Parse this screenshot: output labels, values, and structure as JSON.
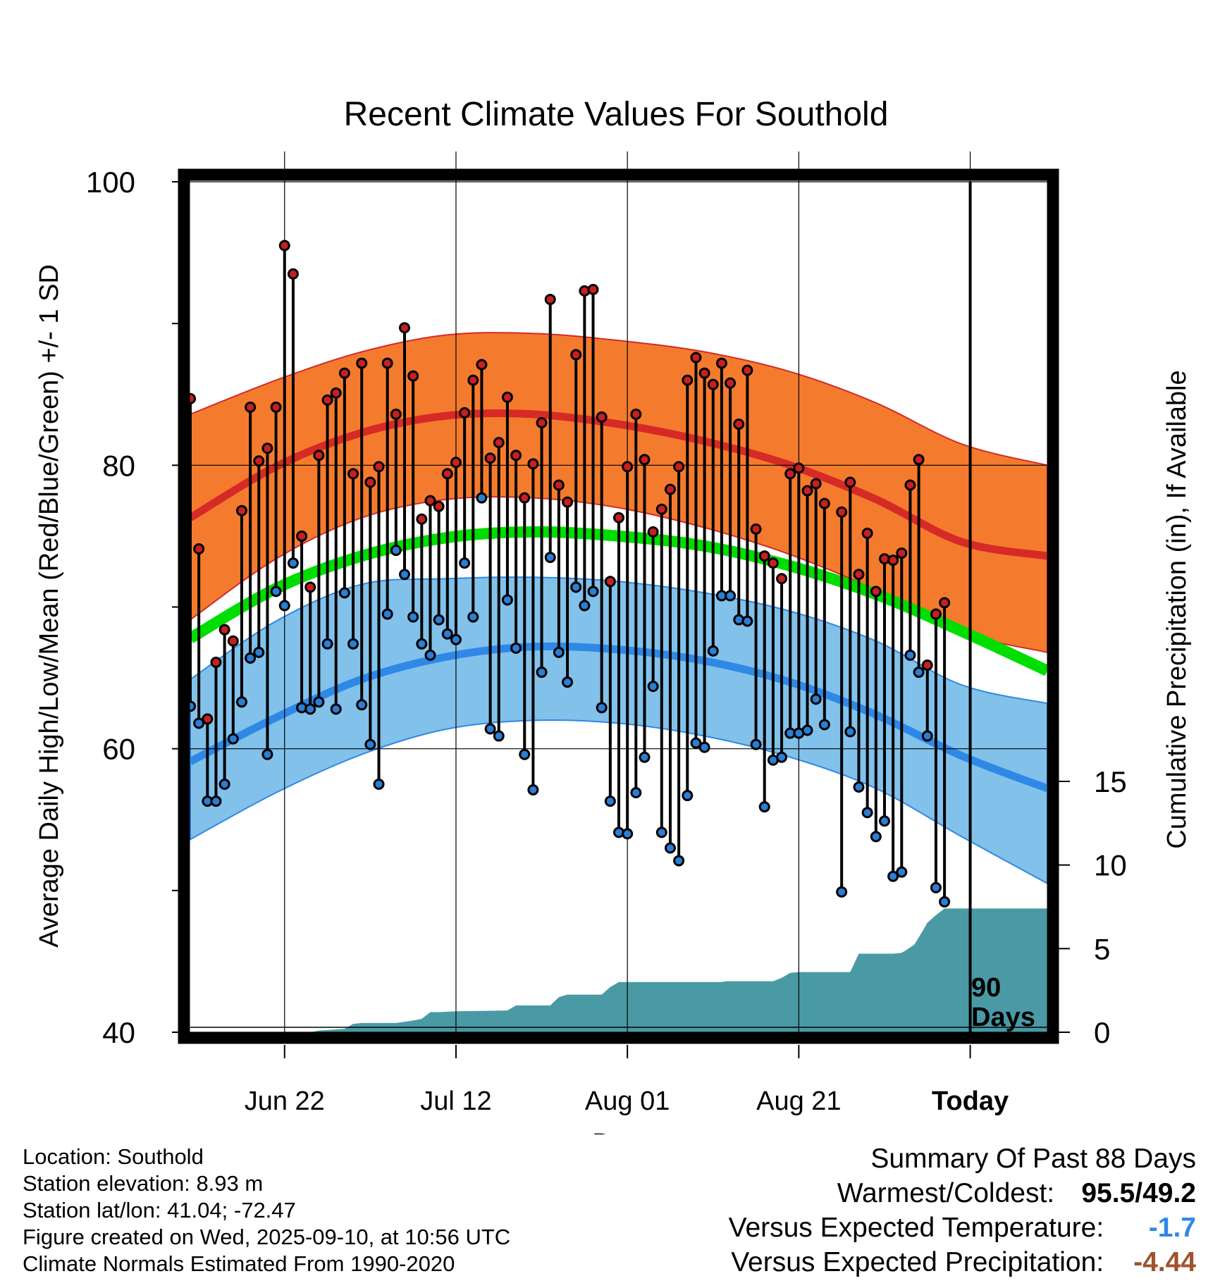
{
  "chart_data": {
    "type": "line",
    "title": "Recent Climate Values For Southold",
    "xlabel": "Day",
    "ylabel": "Average Daily High/Low/Mean (Red/Blue/Green) +/- 1 SD",
    "y2label": "Cumulative Precipitation (in), If Available",
    "ylim": [
      40,
      100
    ],
    "yticks": [
      40,
      60,
      80,
      100
    ],
    "y2lim": [
      0,
      15
    ],
    "y2ticks": [
      0,
      5,
      10,
      15
    ],
    "x_tick_labels": [
      {
        "day": 11,
        "label": "Jun 22"
      },
      {
        "day": 31,
        "label": "Jul 12"
      },
      {
        "day": 51,
        "label": "Aug 01"
      },
      {
        "day": 71,
        "label": "Aug 21"
      },
      {
        "day": 91,
        "label": "Today"
      }
    ],
    "today_day": 91,
    "today_label_line1": "90",
    "today_label_line2": "Days",
    "x_range": [
      0,
      100
    ],
    "series": [
      {
        "name": "Normal High +/- 1 SD",
        "color": "#f47b2e",
        "day": [
          0,
          10,
          20,
          30,
          40,
          50,
          60,
          70,
          80,
          90,
          100
        ],
        "mean": [
          76.3,
          79.9,
          82.3,
          83.5,
          83.6,
          82.9,
          81.7,
          80.0,
          77.6,
          74.6,
          73.6
        ],
        "upper": [
          83.6,
          86.0,
          88.0,
          89.2,
          89.3,
          88.8,
          88.0,
          86.6,
          84.4,
          81.5,
          80.0
        ],
        "lower": [
          69.1,
          73.4,
          76.3,
          77.6,
          77.7,
          77.0,
          75.6,
          73.7,
          71.2,
          68.2,
          66.8
        ]
      },
      {
        "name": "Normal Mean",
        "color": "#00dd00",
        "day": [
          0,
          10,
          20,
          30,
          40,
          50,
          60,
          70,
          80,
          90,
          100
        ],
        "mean": [
          67.8,
          71.3,
          73.6,
          74.9,
          75.3,
          75.0,
          74.3,
          72.9,
          70.9,
          68.3,
          65.5
        ]
      },
      {
        "name": "Normal Low +/- 1 SD",
        "color": "#2f88e6",
        "day": [
          0,
          10,
          20,
          30,
          40,
          50,
          60,
          70,
          80,
          90,
          100
        ],
        "mean": [
          59.1,
          62.2,
          64.9,
          66.5,
          67.2,
          67.0,
          66.2,
          64.7,
          62.4,
          59.5,
          57.2
        ],
        "upper": [
          64.9,
          69.0,
          71.6,
          72.0,
          72.1,
          71.8,
          71.0,
          69.7,
          67.6,
          64.5,
          63.2
        ],
        "lower": [
          53.6,
          56.9,
          59.6,
          61.4,
          62.0,
          61.8,
          60.9,
          59.4,
          57.2,
          53.8,
          50.5
        ]
      }
    ],
    "observed": {
      "day": [
        0,
        1,
        2,
        3,
        4,
        5,
        6,
        7,
        8,
        9,
        10,
        11,
        12,
        13,
        14,
        15,
        16,
        17,
        18,
        19,
        20,
        21,
        22,
        23,
        24,
        25,
        26,
        27,
        28,
        29,
        30,
        31,
        32,
        33,
        34,
        35,
        36,
        37,
        38,
        39,
        40,
        41,
        42,
        43,
        44,
        45,
        46,
        47,
        48,
        49,
        50,
        51,
        52,
        53,
        54,
        55,
        56,
        57,
        58,
        59,
        60,
        61,
        62,
        63,
        64,
        65,
        66,
        67,
        68,
        69,
        70,
        71,
        72,
        73,
        74,
        75,
        76,
        77,
        78,
        79,
        80,
        81,
        82,
        83,
        84,
        85,
        86,
        87,
        88,
        89,
        90,
        91
      ],
      "high": [
        84.7,
        74.1,
        62.1,
        66.1,
        68.4,
        67.6,
        76.8,
        84.1,
        80.3,
        81.2,
        84.1,
        95.5,
        93.5,
        75.0,
        71.4,
        80.7,
        84.6,
        85.1,
        86.5,
        79.4,
        87.2,
        78.8,
        79.9,
        87.2,
        83.6,
        89.7,
        86.3,
        76.2,
        77.5,
        77.1,
        79.4,
        80.2,
        83.7,
        86.0,
        87.1,
        80.5,
        81.6,
        84.8,
        80.7,
        77.7,
        80.1,
        83.0,
        91.7,
        78.6,
        77.4,
        87.8,
        92.3,
        92.4,
        83.4,
        71.8,
        76.3,
        79.9,
        83.6,
        80.4,
        75.3,
        76.9,
        78.3,
        79.9,
        86.0,
        87.6,
        86.5,
        85.7,
        87.2,
        85.8,
        82.9,
        86.7,
        75.5,
        73.6,
        73.1,
        72.0,
        79.4,
        79.8,
        78.2,
        78.7,
        77.3,
        null,
        76.7,
        78.8,
        72.3,
        75.2,
        71.1,
        73.4,
        73.3,
        73.8,
        78.6,
        80.4,
        65.9,
        69.5,
        70.3,
        null,
        null,
        null
      ],
      "low": [
        63.0,
        61.8,
        56.3,
        56.3,
        57.5,
        60.7,
        63.3,
        66.4,
        66.8,
        59.6,
        71.1,
        70.1,
        73.1,
        62.9,
        62.8,
        63.3,
        67.4,
        62.8,
        71.0,
        67.4,
        63.1,
        60.3,
        57.5,
        69.5,
        74.0,
        72.3,
        69.3,
        67.4,
        66.6,
        69.1,
        68.1,
        67.7,
        73.1,
        69.3,
        77.7,
        61.4,
        60.9,
        70.5,
        67.1,
        59.6,
        57.1,
        65.4,
        73.5,
        66.8,
        64.7,
        71.4,
        70.1,
        71.1,
        62.9,
        56.3,
        54.1,
        54.0,
        56.9,
        59.4,
        64.4,
        54.1,
        53.0,
        52.1,
        56.7,
        60.4,
        60.1,
        66.9,
        70.8,
        70.8,
        69.1,
        69.0,
        60.3,
        55.9,
        59.2,
        59.4,
        61.1,
        61.1,
        61.3,
        63.5,
        61.7,
        null,
        49.9,
        61.2,
        57.3,
        55.5,
        53.8,
        54.9,
        51.0,
        51.3,
        66.6,
        65.4,
        60.9,
        50.2,
        49.2,
        null,
        null,
        null
      ]
    },
    "precipitation": {
      "day": [
        0,
        14,
        15,
        18,
        19,
        20,
        24,
        26,
        27,
        28,
        29,
        31,
        37,
        38,
        42,
        43,
        44,
        48,
        49,
        50,
        51,
        52,
        62,
        62.5,
        68,
        69,
        70,
        71,
        77,
        78,
        82,
        83,
        83.5,
        84.5,
        85.5,
        86,
        87,
        88,
        100
      ],
      "total": [
        0,
        0,
        0.1,
        0.2,
        0.5,
        0.55,
        0.55,
        0.7,
        0.8,
        1.2,
        1.2,
        1.25,
        1.3,
        1.6,
        1.6,
        2.1,
        2.25,
        2.25,
        2.7,
        3.0,
        3.0,
        3.0,
        3.0,
        3.05,
        3.05,
        3.25,
        3.55,
        3.6,
        3.6,
        4.7,
        4.7,
        4.75,
        4.9,
        5.25,
        6.1,
        6.55,
        7.0,
        7.4,
        7.4
      ]
    },
    "colors": {
      "high_band": "#f47b2e",
      "high_mean": "#d62a27",
      "mean_line": "#00dd00",
      "low_band": "#82c1ea",
      "low_mean": "#2f88e6",
      "high_dot": "#c8201f",
      "low_dot": "#2a7fd4",
      "precip": "#4a9aa5"
    }
  },
  "footer": {
    "location": "Location: Southold",
    "elevation": "Station elevation: 8.93 m",
    "latlon": "Station lat/lon: 41.04; -72.47",
    "created": "Figure created on Wed, 2025-09-10, at 10:56 UTC",
    "normals": "Climate Normals Estimated From 1990-2020"
  },
  "summary": {
    "heading": "Summary Of Past 88 Days",
    "warm_cold_label": "Warmest/Coldest:",
    "warm_cold_value": "95.5/49.2",
    "temp_label": "Versus Expected Temperature:",
    "temp_value": "-1.7",
    "temp_color": "#2f88e6",
    "precip_label": "Versus Expected Precipitation:",
    "precip_value": "-4.44",
    "precip_color": "#a0522d"
  }
}
